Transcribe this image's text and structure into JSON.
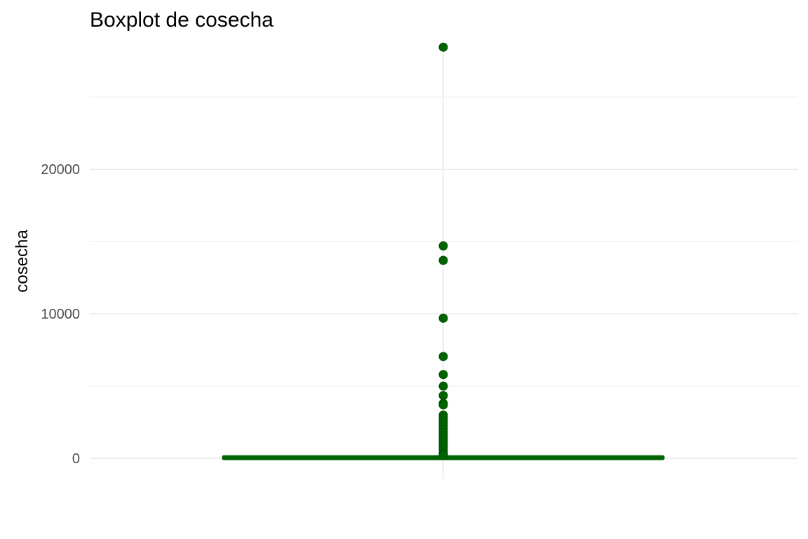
{
  "chart_data": {
    "type": "boxplot",
    "title": "Boxplot de cosecha",
    "xlabel": "",
    "ylabel": "cosecha",
    "ylim": [
      -1400,
      28800
    ],
    "y_ticks": [
      0,
      10000,
      20000
    ],
    "y_tick_labels": [
      "0",
      "10000",
      "20000"
    ],
    "grid": true,
    "box": {
      "q1": 0,
      "median": 0,
      "q3": 5,
      "whisker_low": 0,
      "whisker_high": 12
    },
    "outliers": [
      28450,
      14700,
      13700,
      9700,
      7050,
      5800,
      5000,
      4350,
      3800,
      3700,
      3000,
      2800,
      2600,
      2400,
      2200,
      2000,
      1800,
      1600,
      1400,
      1200,
      1000,
      800,
      600,
      400,
      300,
      200
    ],
    "colors": {
      "fill": "#006400",
      "outline": "#006400",
      "points": "#006400",
      "grid": "#ebebeb"
    }
  }
}
